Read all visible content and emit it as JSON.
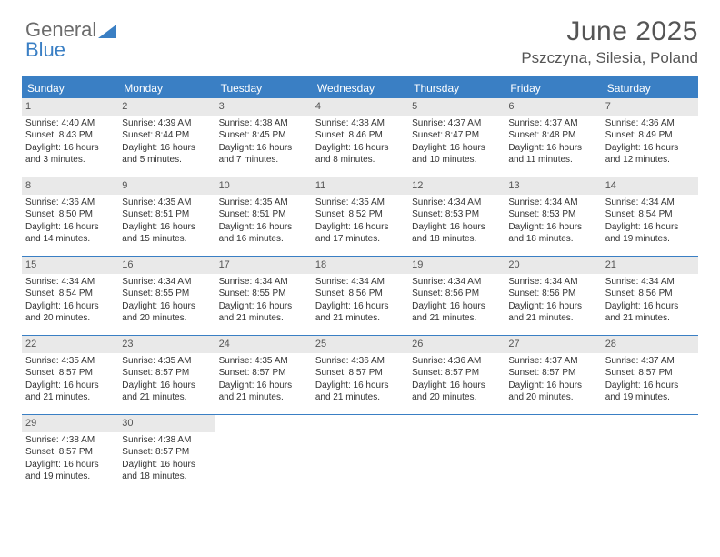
{
  "logo": {
    "part1": "General",
    "part2": "Blue"
  },
  "header": {
    "title": "June 2025",
    "location": "Pszczyna, Silesia, Poland"
  },
  "colors": {
    "accent": "#3a7fc4",
    "dayNumBg": "#e9e9e9",
    "text": "#333333",
    "headerText": "#555555"
  },
  "dayNames": [
    "Sunday",
    "Monday",
    "Tuesday",
    "Wednesday",
    "Thursday",
    "Friday",
    "Saturday"
  ],
  "weeks": [
    [
      {
        "n": "1",
        "sr": "Sunrise: 4:40 AM",
        "ss": "Sunset: 8:43 PM",
        "d1": "Daylight: 16 hours",
        "d2": "and 3 minutes."
      },
      {
        "n": "2",
        "sr": "Sunrise: 4:39 AM",
        "ss": "Sunset: 8:44 PM",
        "d1": "Daylight: 16 hours",
        "d2": "and 5 minutes."
      },
      {
        "n": "3",
        "sr": "Sunrise: 4:38 AM",
        "ss": "Sunset: 8:45 PM",
        "d1": "Daylight: 16 hours",
        "d2": "and 7 minutes."
      },
      {
        "n": "4",
        "sr": "Sunrise: 4:38 AM",
        "ss": "Sunset: 8:46 PM",
        "d1": "Daylight: 16 hours",
        "d2": "and 8 minutes."
      },
      {
        "n": "5",
        "sr": "Sunrise: 4:37 AM",
        "ss": "Sunset: 8:47 PM",
        "d1": "Daylight: 16 hours",
        "d2": "and 10 minutes."
      },
      {
        "n": "6",
        "sr": "Sunrise: 4:37 AM",
        "ss": "Sunset: 8:48 PM",
        "d1": "Daylight: 16 hours",
        "d2": "and 11 minutes."
      },
      {
        "n": "7",
        "sr": "Sunrise: 4:36 AM",
        "ss": "Sunset: 8:49 PM",
        "d1": "Daylight: 16 hours",
        "d2": "and 12 minutes."
      }
    ],
    [
      {
        "n": "8",
        "sr": "Sunrise: 4:36 AM",
        "ss": "Sunset: 8:50 PM",
        "d1": "Daylight: 16 hours",
        "d2": "and 14 minutes."
      },
      {
        "n": "9",
        "sr": "Sunrise: 4:35 AM",
        "ss": "Sunset: 8:51 PM",
        "d1": "Daylight: 16 hours",
        "d2": "and 15 minutes."
      },
      {
        "n": "10",
        "sr": "Sunrise: 4:35 AM",
        "ss": "Sunset: 8:51 PM",
        "d1": "Daylight: 16 hours",
        "d2": "and 16 minutes."
      },
      {
        "n": "11",
        "sr": "Sunrise: 4:35 AM",
        "ss": "Sunset: 8:52 PM",
        "d1": "Daylight: 16 hours",
        "d2": "and 17 minutes."
      },
      {
        "n": "12",
        "sr": "Sunrise: 4:34 AM",
        "ss": "Sunset: 8:53 PM",
        "d1": "Daylight: 16 hours",
        "d2": "and 18 minutes."
      },
      {
        "n": "13",
        "sr": "Sunrise: 4:34 AM",
        "ss": "Sunset: 8:53 PM",
        "d1": "Daylight: 16 hours",
        "d2": "and 18 minutes."
      },
      {
        "n": "14",
        "sr": "Sunrise: 4:34 AM",
        "ss": "Sunset: 8:54 PM",
        "d1": "Daylight: 16 hours",
        "d2": "and 19 minutes."
      }
    ],
    [
      {
        "n": "15",
        "sr": "Sunrise: 4:34 AM",
        "ss": "Sunset: 8:54 PM",
        "d1": "Daylight: 16 hours",
        "d2": "and 20 minutes."
      },
      {
        "n": "16",
        "sr": "Sunrise: 4:34 AM",
        "ss": "Sunset: 8:55 PM",
        "d1": "Daylight: 16 hours",
        "d2": "and 20 minutes."
      },
      {
        "n": "17",
        "sr": "Sunrise: 4:34 AM",
        "ss": "Sunset: 8:55 PM",
        "d1": "Daylight: 16 hours",
        "d2": "and 21 minutes."
      },
      {
        "n": "18",
        "sr": "Sunrise: 4:34 AM",
        "ss": "Sunset: 8:56 PM",
        "d1": "Daylight: 16 hours",
        "d2": "and 21 minutes."
      },
      {
        "n": "19",
        "sr": "Sunrise: 4:34 AM",
        "ss": "Sunset: 8:56 PM",
        "d1": "Daylight: 16 hours",
        "d2": "and 21 minutes."
      },
      {
        "n": "20",
        "sr": "Sunrise: 4:34 AM",
        "ss": "Sunset: 8:56 PM",
        "d1": "Daylight: 16 hours",
        "d2": "and 21 minutes."
      },
      {
        "n": "21",
        "sr": "Sunrise: 4:34 AM",
        "ss": "Sunset: 8:56 PM",
        "d1": "Daylight: 16 hours",
        "d2": "and 21 minutes."
      }
    ],
    [
      {
        "n": "22",
        "sr": "Sunrise: 4:35 AM",
        "ss": "Sunset: 8:57 PM",
        "d1": "Daylight: 16 hours",
        "d2": "and 21 minutes."
      },
      {
        "n": "23",
        "sr": "Sunrise: 4:35 AM",
        "ss": "Sunset: 8:57 PM",
        "d1": "Daylight: 16 hours",
        "d2": "and 21 minutes."
      },
      {
        "n": "24",
        "sr": "Sunrise: 4:35 AM",
        "ss": "Sunset: 8:57 PM",
        "d1": "Daylight: 16 hours",
        "d2": "and 21 minutes."
      },
      {
        "n": "25",
        "sr": "Sunrise: 4:36 AM",
        "ss": "Sunset: 8:57 PM",
        "d1": "Daylight: 16 hours",
        "d2": "and 21 minutes."
      },
      {
        "n": "26",
        "sr": "Sunrise: 4:36 AM",
        "ss": "Sunset: 8:57 PM",
        "d1": "Daylight: 16 hours",
        "d2": "and 20 minutes."
      },
      {
        "n": "27",
        "sr": "Sunrise: 4:37 AM",
        "ss": "Sunset: 8:57 PM",
        "d1": "Daylight: 16 hours",
        "d2": "and 20 minutes."
      },
      {
        "n": "28",
        "sr": "Sunrise: 4:37 AM",
        "ss": "Sunset: 8:57 PM",
        "d1": "Daylight: 16 hours",
        "d2": "and 19 minutes."
      }
    ],
    [
      {
        "n": "29",
        "sr": "Sunrise: 4:38 AM",
        "ss": "Sunset: 8:57 PM",
        "d1": "Daylight: 16 hours",
        "d2": "and 19 minutes."
      },
      {
        "n": "30",
        "sr": "Sunrise: 4:38 AM",
        "ss": "Sunset: 8:57 PM",
        "d1": "Daylight: 16 hours",
        "d2": "and 18 minutes."
      },
      null,
      null,
      null,
      null,
      null
    ]
  ]
}
